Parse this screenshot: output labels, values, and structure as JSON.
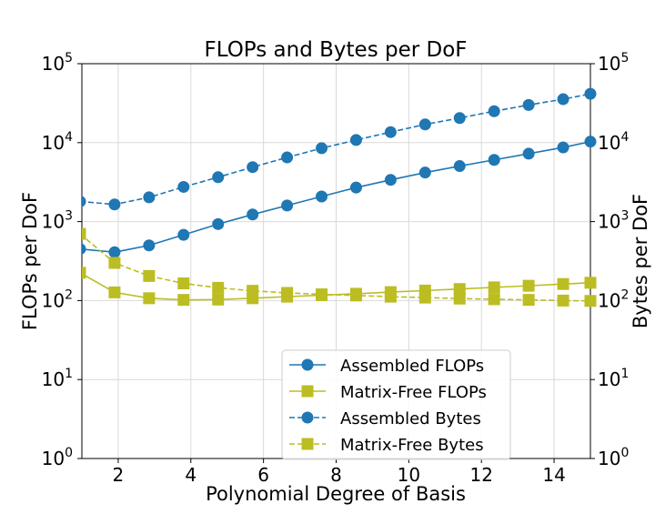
{
  "chart_data": {
    "type": "line",
    "title": "FLOPs and Bytes per DoF",
    "xlabel": "Polynomial Degree of Basis",
    "ylabel_left": "FLOPs per DoF",
    "ylabel_right": "Bytes per DoF",
    "yscale": "log",
    "xlim": [
      1,
      15
    ],
    "ylim": [
      1,
      100000
    ],
    "grid": true,
    "legend_position": "lower-center",
    "x_ticks": [
      "2",
      "4",
      "6",
      "8",
      "10",
      "12",
      "14"
    ],
    "y_ticks": [
      {
        "base": "10",
        "exp": "0"
      },
      {
        "base": "10",
        "exp": "1"
      },
      {
        "base": "10",
        "exp": "2"
      },
      {
        "base": "10",
        "exp": "3"
      },
      {
        "base": "10",
        "exp": "4"
      },
      {
        "base": "10",
        "exp": "5"
      }
    ],
    "x": [
      0.95,
      1.9,
      2.85,
      3.8,
      4.75,
      5.7,
      6.65,
      7.6,
      8.55,
      9.5,
      10.45,
      11.4,
      12.35,
      13.3,
      14.25,
      15.0
    ],
    "series": [
      {
        "name": "Assembled FLOPs",
        "color": "#1f77b4",
        "style": "solid",
        "marker": "circle",
        "values": [
          450,
          410,
          500,
          680,
          930,
          1230,
          1600,
          2080,
          2700,
          3380,
          4180,
          5050,
          6050,
          7250,
          8700,
          10300
        ]
      },
      {
        "name": "Matrix-Free FLOPs",
        "color": "#bcbd22",
        "style": "solid",
        "marker": "square",
        "values": [
          225,
          127,
          107,
          102,
          103,
          107,
          112,
          117,
          122,
          128,
          134,
          140,
          147,
          154,
          162,
          168
        ]
      },
      {
        "name": "Assembled Bytes",
        "color": "#1f77b4",
        "style": "dashed",
        "marker": "circle",
        "values": [
          1800,
          1650,
          2030,
          2750,
          3650,
          4900,
          6500,
          8500,
          10800,
          13600,
          17000,
          20500,
          25000,
          30000,
          35500,
          41500
        ]
      },
      {
        "name": "Matrix-Free Bytes",
        "color": "#bcbd22",
        "style": "dashed",
        "marker": "square",
        "values": [
          700,
          300,
          205,
          165,
          145,
          133,
          125,
          120,
          116,
          112,
          109,
          106,
          104,
          102,
          100,
          99
        ]
      }
    ]
  }
}
